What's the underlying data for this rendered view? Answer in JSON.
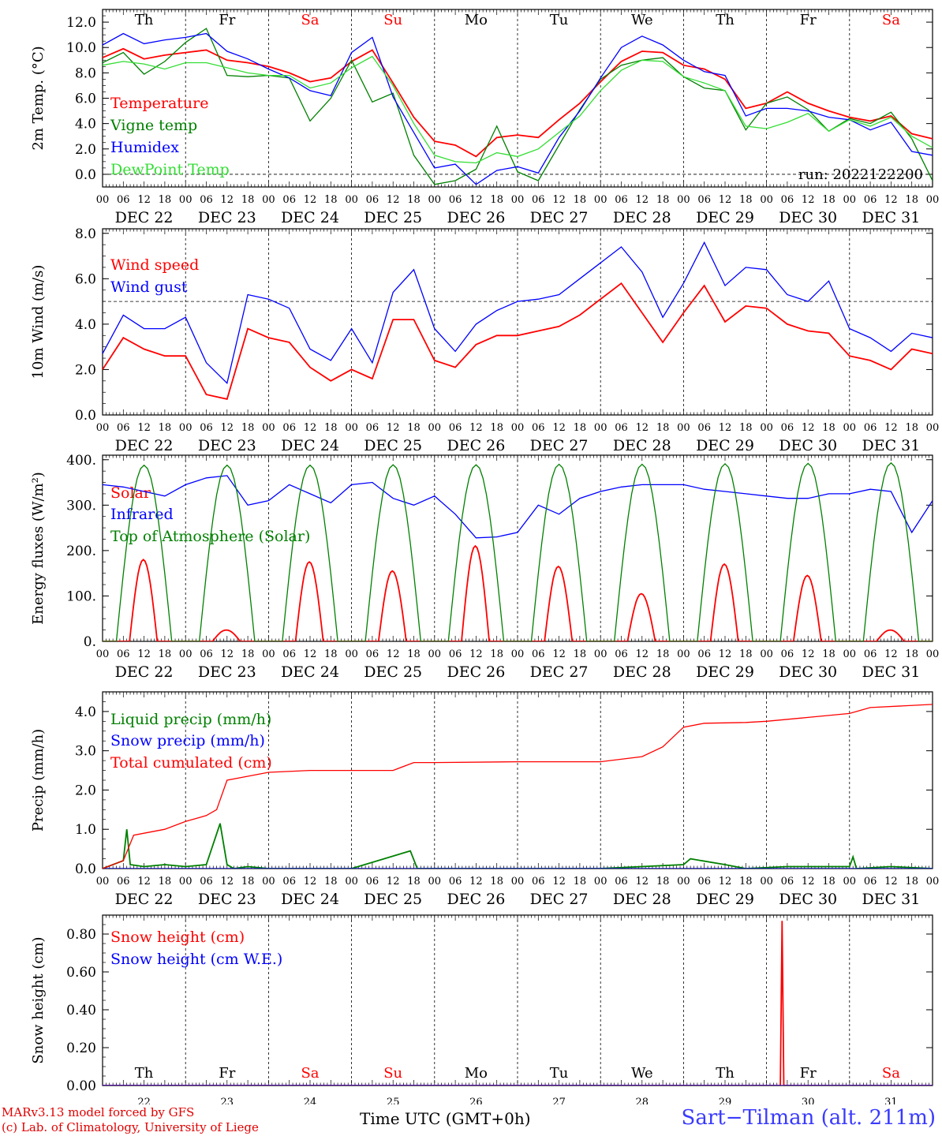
{
  "colors": {
    "red": "#ff0000",
    "green": "#008000",
    "blue": "#0000ff",
    "lightgreen": "#33dd33",
    "purple": "#8800aa",
    "weekend": "#ff0000",
    "station": "#3a3aff"
  },
  "days": {
    "weekday_labels": [
      "Th",
      "Fr",
      "Sa",
      "Su",
      "Mo",
      "Tu",
      "We",
      "Th",
      "Fr",
      "Sa"
    ],
    "weekend_index": [
      2,
      3,
      9
    ],
    "date_labels": [
      "DEC 22",
      "DEC 23",
      "DEC 24",
      "DEC 25",
      "DEC 26",
      "DEC 27",
      "DEC 28",
      "DEC 29",
      "DEC 30",
      "DEC 31"
    ],
    "day_numbers": [
      "22",
      "23",
      "24",
      "25",
      "26",
      "27",
      "28",
      "29",
      "30",
      "31"
    ],
    "hour_labels": [
      "00",
      "06",
      "12",
      "18"
    ],
    "final_hour_label": "00"
  },
  "footer": {
    "credit_line1": "MARv3.13 model forced by GFS",
    "credit_line2": "(c) Lab. of Climatology, University of Liege",
    "time_axis_label": "Time UTC (GMT+0h)",
    "station": "Sart−Tilman (alt. 211m)"
  },
  "chart_data": [
    {
      "type": "line",
      "ylabel": "2m Temp. (°C)",
      "ylim": [
        -1,
        13
      ],
      "yticks": [
        "12.0",
        "10.0",
        "8.0",
        "6.0",
        "4.0",
        "2.0",
        "0.0"
      ],
      "ytick_values": [
        12,
        10,
        8,
        6,
        4,
        2,
        0
      ],
      "reference_line": 0,
      "annotation": "run: 2022122200",
      "show_weekdays": true,
      "x_unit": "hours since 2022-12-22 00 UTC",
      "x": [
        0,
        6,
        12,
        18,
        24,
        30,
        36,
        42,
        48,
        54,
        60,
        66,
        72,
        78,
        84,
        90,
        96,
        102,
        108,
        114,
        120,
        126,
        132,
        138,
        144,
        150,
        156,
        162,
        168,
        174,
        180,
        186,
        192,
        198,
        204,
        210,
        216,
        222,
        228,
        234,
        240
      ],
      "series": [
        {
          "name": "Temperature",
          "color": "#ff0000",
          "values": [
            9.2,
            9.9,
            9.1,
            9.4,
            9.6,
            9.8,
            9.0,
            8.8,
            8.5,
            8.0,
            7.3,
            7.6,
            8.9,
            9.8,
            7.2,
            4.5,
            2.6,
            2.3,
            1.4,
            2.9,
            3.1,
            2.9,
            4.3,
            5.6,
            7.3,
            8.9,
            9.7,
            9.6,
            8.6,
            8.3,
            7.5,
            5.2,
            5.6,
            6.5,
            5.6,
            5.0,
            4.5,
            4.2,
            4.6,
            3.2,
            2.8
          ]
        },
        {
          "name": "Vigne temp",
          "color": "#008000",
          "values": [
            8.8,
            9.6,
            7.9,
            8.9,
            10.4,
            11.5,
            7.8,
            7.7,
            7.8,
            7.6,
            4.2,
            6.0,
            9.0,
            5.7,
            6.4,
            1.5,
            -0.8,
            -0.5,
            0.4,
            3.8,
            0.2,
            -0.5,
            2.3,
            5.1,
            7.5,
            8.6,
            9.0,
            9.2,
            7.7,
            6.8,
            6.6,
            3.5,
            5.6,
            6.1,
            5.1,
            3.4,
            4.4,
            4.0,
            4.9,
            2.8,
            -0.5
          ]
        },
        {
          "name": "Humidex",
          "color": "#0000ff",
          "values": [
            10.2,
            11.1,
            10.3,
            10.6,
            10.8,
            11.1,
            9.7,
            9.1,
            8.3,
            7.6,
            6.6,
            6.2,
            9.6,
            10.8,
            6.1,
            3.3,
            0.5,
            0.8,
            -0.8,
            0.3,
            0.6,
            0.1,
            2.9,
            5.0,
            7.6,
            10.0,
            10.9,
            10.2,
            9.0,
            8.1,
            7.8,
            4.6,
            5.2,
            5.2,
            5.0,
            4.5,
            4.3,
            3.5,
            4.1,
            1.8,
            1.5
          ]
        },
        {
          "name": "DewPoint Temp",
          "color": "#33dd33",
          "values": [
            8.6,
            8.9,
            8.7,
            8.3,
            8.8,
            8.8,
            8.4,
            8.0,
            7.8,
            7.8,
            6.8,
            7.2,
            8.4,
            9.3,
            7.0,
            4.0,
            1.5,
            1.0,
            0.9,
            1.7,
            1.4,
            2.0,
            3.3,
            4.6,
            6.6,
            8.2,
            9.0,
            8.9,
            7.7,
            7.2,
            6.6,
            3.8,
            3.6,
            4.1,
            4.8,
            3.4,
            4.3,
            3.8,
            4.5,
            3.0,
            2.1
          ]
        }
      ]
    },
    {
      "type": "line",
      "ylabel": "10m Wind (m/s)",
      "ylim": [
        0,
        8.2
      ],
      "yticks": [
        "8.0",
        "6.0",
        "4.0",
        "2.0",
        "0.0"
      ],
      "ytick_values": [
        8,
        6,
        4,
        2,
        0
      ],
      "reference_line": 5,
      "show_weekdays": false,
      "x_unit": "hours since 2022-12-22 00 UTC",
      "x": [
        0,
        6,
        12,
        18,
        24,
        30,
        36,
        42,
        48,
        54,
        60,
        66,
        72,
        78,
        84,
        90,
        96,
        102,
        108,
        114,
        120,
        126,
        132,
        138,
        144,
        150,
        156,
        162,
        168,
        174,
        180,
        186,
        192,
        198,
        204,
        210,
        216,
        222,
        228,
        234,
        240
      ],
      "series": [
        {
          "name": "Wind speed",
          "color": "#ff0000",
          "values": [
            2.0,
            3.4,
            2.9,
            2.6,
            2.6,
            0.9,
            0.7,
            3.8,
            3.4,
            3.2,
            2.1,
            1.5,
            2.0,
            1.6,
            4.2,
            4.2,
            2.4,
            2.1,
            3.1,
            3.5,
            3.5,
            3.7,
            3.9,
            4.4,
            5.1,
            5.8,
            4.5,
            3.2,
            4.5,
            5.7,
            4.1,
            4.8,
            4.7,
            4.0,
            3.7,
            3.6,
            2.6,
            2.4,
            2.0,
            2.9,
            2.7
          ]
        },
        {
          "name": "Wind gust",
          "color": "#0000ff",
          "values": [
            2.7,
            4.4,
            3.8,
            3.8,
            4.3,
            2.3,
            1.4,
            5.3,
            5.1,
            4.7,
            2.9,
            2.4,
            3.8,
            2.3,
            5.4,
            6.4,
            3.8,
            2.8,
            4.0,
            4.6,
            5.0,
            5.1,
            5.3,
            6.0,
            6.7,
            7.4,
            6.3,
            4.3,
            5.8,
            7.6,
            5.7,
            6.5,
            6.4,
            5.3,
            5.0,
            5.9,
            3.8,
            3.4,
            2.8,
            3.6,
            3.4
          ]
        }
      ]
    },
    {
      "type": "line",
      "ylabel": "Energy fluxes (W/m²)",
      "ylim": [
        0,
        410
      ],
      "yticks": [
        "400.",
        "300.",
        "200.",
        "100.",
        "0."
      ],
      "ytick_values": [
        400,
        300,
        200,
        100,
        0
      ],
      "show_weekdays": false,
      "x_unit": "hours since 2022-12-22 00 UTC",
      "series": [
        {
          "name": "Solar",
          "color": "#ff0000",
          "kind": "daily_peaks",
          "day_peaks": [
            180,
            25,
            175,
            155,
            210,
            165,
            105,
            170,
            145,
            25
          ],
          "noon_hour": 11.8,
          "half_width_hours": 4.0
        },
        {
          "name": "Infrared",
          "color": "#0000ff",
          "x": [
            0,
            6,
            12,
            18,
            24,
            30,
            36,
            42,
            48,
            54,
            60,
            66,
            72,
            78,
            84,
            90,
            96,
            102,
            108,
            114,
            120,
            126,
            132,
            138,
            144,
            150,
            156,
            162,
            168,
            174,
            180,
            186,
            192,
            198,
            204,
            210,
            216,
            222,
            228,
            234,
            240
          ],
          "values": [
            345,
            340,
            330,
            320,
            345,
            360,
            365,
            300,
            310,
            345,
            325,
            305,
            345,
            350,
            315,
            300,
            320,
            280,
            228,
            230,
            240,
            300,
            280,
            315,
            330,
            340,
            345,
            345,
            345,
            335,
            330,
            325,
            320,
            315,
            315,
            325,
            325,
            335,
            330,
            240,
            310
          ]
        },
        {
          "name": "Top of Atmosphere (Solar)",
          "color": "#008000",
          "kind": "daily_peaks",
          "day_peaks": [
            388,
            388,
            388,
            389,
            389,
            390,
            390,
            391,
            392,
            393
          ],
          "noon_hour": 12.0,
          "half_width_hours": 8.0
        }
      ]
    },
    {
      "type": "line",
      "ylabel": "Precip (mm/h)",
      "ylim": [
        0,
        4.5
      ],
      "yticks": [
        "4.0",
        "3.0",
        "2.0",
        "1.0",
        "0.0"
      ],
      "ytick_values": [
        4,
        3,
        2,
        1,
        0
      ],
      "show_weekdays": false,
      "x_unit": "hours since 2022-12-22 00 UTC",
      "series": [
        {
          "name": "Liquid precip (mm/h)",
          "color": "#008000",
          "x": [
            0,
            6,
            7,
            8,
            12,
            18,
            24,
            30,
            34,
            36,
            38,
            42,
            48,
            72,
            89,
            91,
            96,
            144,
            168,
            170,
            180,
            186,
            198,
            216,
            217,
            218,
            228,
            240
          ],
          "values": [
            0,
            0.2,
            1.0,
            0.1,
            0.05,
            0.1,
            0.05,
            0.1,
            1.15,
            0.1,
            0,
            0.05,
            0,
            0,
            0.45,
            0,
            0,
            0,
            0.1,
            0.25,
            0.1,
            0,
            0.05,
            0.05,
            0.3,
            0,
            0.05,
            0
          ]
        },
        {
          "name": "Snow precip (mm/h)",
          "color": "#0000ff",
          "x": [
            0,
            240
          ],
          "values": [
            0,
            0
          ]
        },
        {
          "name": "Total cumulated (cm)",
          "color": "#ff0000",
          "x": [
            0,
            6,
            9,
            12,
            18,
            24,
            30,
            33,
            36,
            42,
            48,
            60,
            72,
            84,
            90,
            96,
            120,
            144,
            156,
            162,
            168,
            174,
            186,
            192,
            204,
            216,
            222,
            240
          ],
          "values": [
            0,
            0.2,
            0.85,
            0.9,
            1.0,
            1.2,
            1.35,
            1.5,
            2.25,
            2.35,
            2.45,
            2.5,
            2.5,
            2.5,
            2.7,
            2.7,
            2.72,
            2.72,
            2.85,
            3.1,
            3.6,
            3.7,
            3.72,
            3.75,
            3.85,
            3.95,
            4.1,
            4.18
          ]
        }
      ]
    },
    {
      "type": "line",
      "ylabel": "Snow height (cm)",
      "ylim": [
        0,
        0.9
      ],
      "yticks": [
        "0.80",
        "0.60",
        "0.40",
        "0.20",
        "0.00"
      ],
      "ytick_values": [
        0.8,
        0.6,
        0.4,
        0.2,
        0
      ],
      "show_weekdays": true,
      "weekday_position": "bottom",
      "x_unit": "hours since 2022-12-22 00 UTC",
      "series": [
        {
          "name": "Snow height (cm)",
          "color": "#ff0000",
          "x": [
            0,
            196,
            196.5,
            197,
            240
          ],
          "values": [
            0,
            0,
            0.87,
            0,
            0
          ]
        },
        {
          "name": "Snow height (cm W.E.)",
          "color": "#0000ff",
          "x": [
            0,
            240
          ],
          "values": [
            0,
            0
          ]
        }
      ]
    }
  ]
}
